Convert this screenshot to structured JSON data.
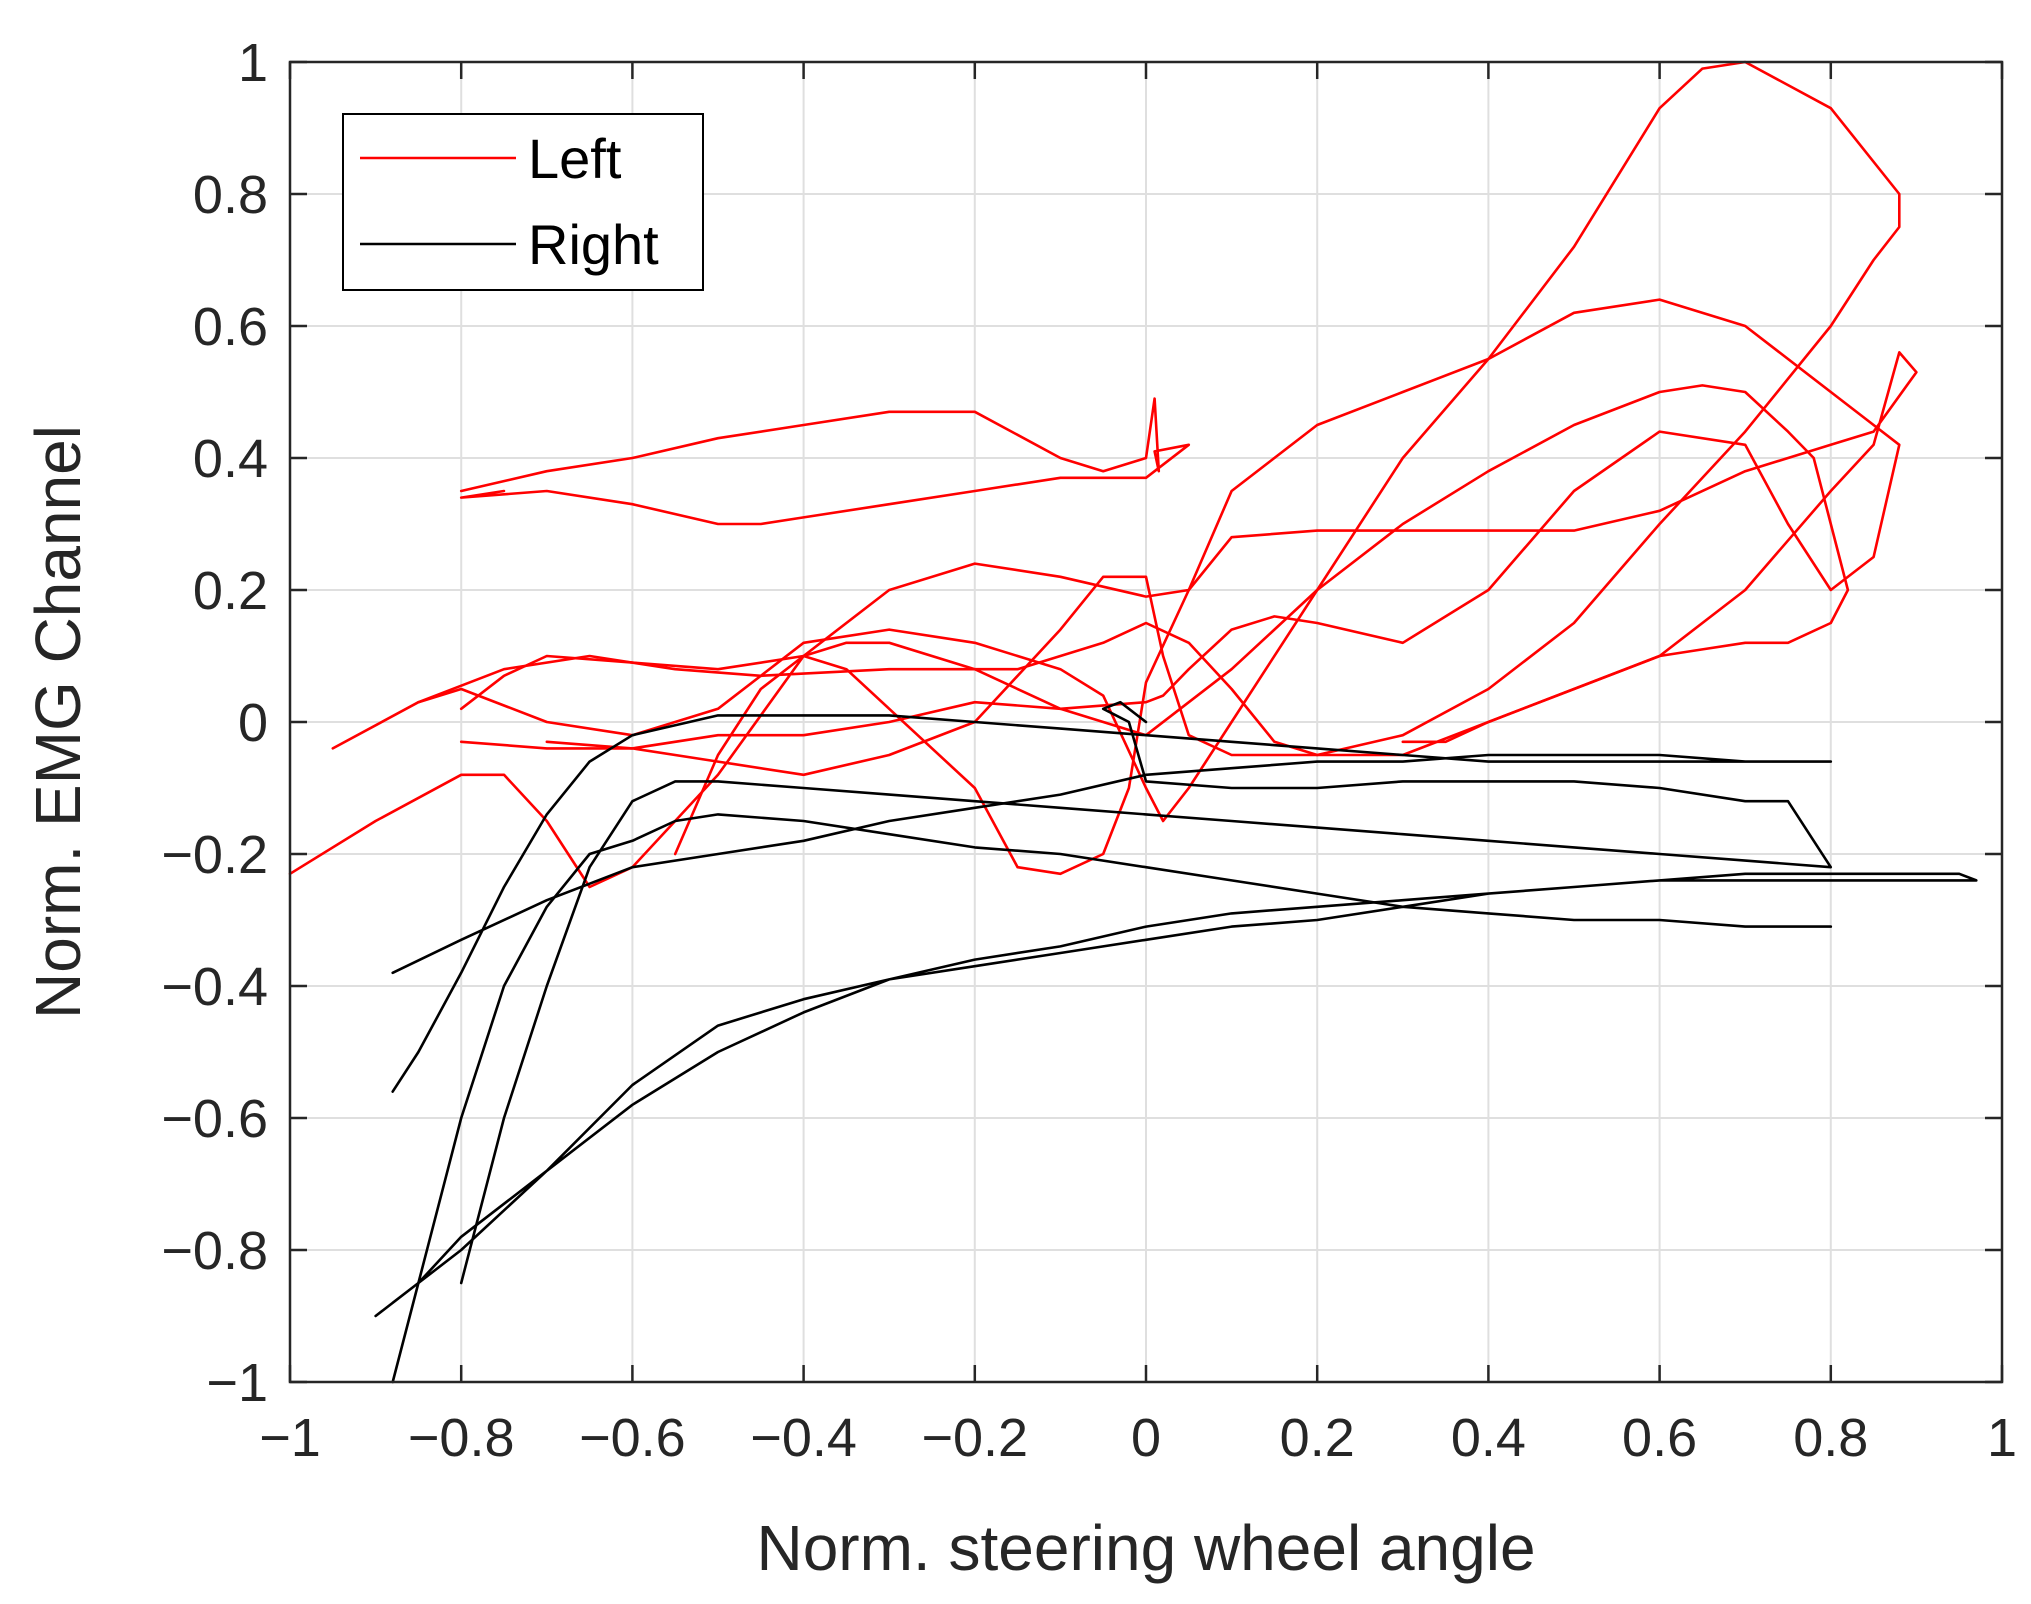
{
  "chart_data": {
    "type": "line",
    "title": "",
    "xlabel": "Norm. steering wheel angle",
    "ylabel": "Norm. EMG Channel",
    "xlim": [
      -1,
      1
    ],
    "ylim": [
      -1,
      1
    ],
    "grid": true,
    "legend_position": "top-left",
    "xticks": [
      -1,
      -0.8,
      -0.6,
      -0.4,
      -0.2,
      0,
      0.2,
      0.4,
      0.6,
      0.8,
      1
    ],
    "yticks": [
      -1,
      -0.8,
      -0.6,
      -0.4,
      -0.2,
      0,
      0.2,
      0.4,
      0.6,
      0.8,
      1
    ],
    "xtick_labels": [
      "−1",
      "−0.8",
      "−0.6",
      "−0.4",
      "−0.2",
      "0",
      "0.2",
      "0.4",
      "0.6",
      "0.8",
      "1"
    ],
    "ytick_labels": [
      "−1",
      "−0.8",
      "−0.6",
      "−0.4",
      "−0.2",
      "0",
      "0.2",
      "0.4",
      "0.6",
      "0.8",
      "1"
    ],
    "series": [
      {
        "name": "Left",
        "color": "#ff0000",
        "show_in_legend": true,
        "x": [
          -0.8,
          -0.7,
          -0.6,
          -0.5,
          -0.4,
          -0.3,
          -0.2,
          -0.1,
          -0.05,
          0.0,
          0.01,
          0.015,
          0.01,
          0.05,
          0.0,
          -0.1,
          -0.2,
          -0.3,
          -0.4,
          -0.45,
          -0.5,
          -0.6,
          -0.7,
          -0.8,
          -0.75
        ],
        "y": [
          0.35,
          0.38,
          0.4,
          0.43,
          0.45,
          0.47,
          0.47,
          0.4,
          0.38,
          0.4,
          0.49,
          0.38,
          0.41,
          0.42,
          0.37,
          0.37,
          0.35,
          0.33,
          0.31,
          0.3,
          0.3,
          0.33,
          0.35,
          0.34,
          0.35
        ]
      },
      {
        "name": "Left-2",
        "color": "#ff0000",
        "show_in_legend": false,
        "x": [
          -1.0,
          -0.9,
          -0.8,
          -0.75,
          -0.7,
          -0.65,
          -0.6,
          -0.5,
          -0.4,
          -0.3,
          -0.2,
          -0.1,
          0.0,
          0.05,
          0.1,
          0.2,
          0.3,
          0.4,
          0.5,
          0.6,
          0.7,
          0.8,
          0.85,
          0.9,
          0.88,
          0.85,
          0.8,
          0.7,
          0.6,
          0.5,
          0.4,
          0.3,
          0.2,
          0.15,
          0.1,
          0.05,
          0.0,
          -0.05,
          -0.15,
          -0.3,
          -0.45,
          -0.55,
          -0.65,
          -0.75,
          -0.85,
          -0.95
        ],
        "y": [
          -0.23,
          -0.15,
          -0.08,
          -0.08,
          -0.15,
          -0.25,
          -0.22,
          -0.08,
          0.1,
          0.2,
          0.24,
          0.22,
          0.19,
          0.2,
          0.28,
          0.29,
          0.29,
          0.29,
          0.29,
          0.32,
          0.38,
          0.42,
          0.44,
          0.53,
          0.56,
          0.42,
          0.35,
          0.2,
          0.1,
          0.05,
          0.0,
          -0.05,
          -0.05,
          -0.03,
          0.05,
          0.12,
          0.15,
          0.12,
          0.08,
          0.08,
          0.07,
          0.08,
          0.1,
          0.08,
          0.03,
          -0.04
        ]
      },
      {
        "name": "Left-3",
        "color": "#ff0000",
        "show_in_legend": false,
        "x": [
          -0.85,
          -0.8,
          -0.7,
          -0.6,
          -0.5,
          -0.4,
          -0.3,
          -0.2,
          -0.1,
          -0.05,
          0.0,
          0.02,
          0.05,
          0.1,
          0.2,
          0.3,
          0.4,
          0.5,
          0.6,
          0.65,
          0.7,
          0.8,
          0.88,
          0.88,
          0.85,
          0.8,
          0.7,
          0.6,
          0.5,
          0.4,
          0.3,
          0.2,
          0.1,
          0.05,
          0.02,
          0.0,
          -0.05,
          -0.1,
          -0.2,
          -0.3,
          -0.4,
          -0.5,
          -0.6,
          -0.7,
          -0.8
        ],
        "y": [
          0.03,
          0.05,
          0.0,
          -0.02,
          0.02,
          0.12,
          0.14,
          0.12,
          0.08,
          0.04,
          -0.1,
          -0.15,
          -0.1,
          0.0,
          0.2,
          0.4,
          0.55,
          0.72,
          0.93,
          0.99,
          1.0,
          0.93,
          0.8,
          0.75,
          0.7,
          0.6,
          0.44,
          0.3,
          0.15,
          0.05,
          -0.02,
          -0.05,
          -0.05,
          -0.02,
          0.1,
          0.22,
          0.22,
          0.14,
          0.0,
          -0.05,
          -0.08,
          -0.06,
          -0.04,
          -0.04,
          -0.03
        ]
      },
      {
        "name": "Left-4",
        "color": "#ff0000",
        "show_in_legend": false,
        "x": [
          -0.8,
          -0.75,
          -0.7,
          -0.6,
          -0.5,
          -0.4,
          -0.35,
          -0.3,
          -0.2,
          -0.15,
          -0.1,
          -0.05,
          -0.02,
          0.0,
          0.05,
          0.1,
          0.2,
          0.3,
          0.4,
          0.5,
          0.6,
          0.7,
          0.8,
          0.85,
          0.88,
          0.85,
          0.8,
          0.75,
          0.7,
          0.6,
          0.5,
          0.4,
          0.3,
          0.2,
          0.15,
          0.1,
          0.05,
          0.02,
          0.0,
          -0.1,
          -0.2,
          -0.3,
          -0.4,
          -0.5,
          -0.6,
          -0.7
        ],
        "y": [
          0.02,
          0.07,
          0.1,
          0.09,
          0.08,
          0.1,
          0.08,
          0.02,
          -0.1,
          -0.22,
          -0.23,
          -0.2,
          -0.1,
          0.06,
          0.2,
          0.35,
          0.45,
          0.5,
          0.55,
          0.62,
          0.64,
          0.6,
          0.5,
          0.45,
          0.42,
          0.25,
          0.2,
          0.3,
          0.42,
          0.44,
          0.35,
          0.2,
          0.12,
          0.15,
          0.16,
          0.14,
          0.08,
          0.04,
          0.03,
          0.02,
          0.03,
          0.0,
          -0.02,
          -0.02,
          -0.04,
          -0.03
        ]
      },
      {
        "name": "Left-5",
        "color": "#ff0000",
        "show_in_legend": false,
        "x": [
          -0.55,
          -0.5,
          -0.45,
          -0.4,
          -0.35,
          -0.3,
          -0.2,
          -0.1,
          0.0,
          0.1,
          0.2,
          0.3,
          0.4,
          0.5,
          0.6,
          0.65,
          0.7,
          0.75,
          0.78,
          0.8,
          0.82,
          0.8,
          0.75,
          0.7,
          0.65,
          0.6,
          0.5,
          0.4,
          0.35,
          0.3
        ],
        "y": [
          -0.2,
          -0.05,
          0.05,
          0.1,
          0.12,
          0.12,
          0.08,
          0.02,
          -0.02,
          0.08,
          0.2,
          0.3,
          0.38,
          0.45,
          0.5,
          0.51,
          0.5,
          0.44,
          0.4,
          0.3,
          0.2,
          0.15,
          0.12,
          0.12,
          0.11,
          0.1,
          0.05,
          0.0,
          -0.03,
          -0.03
        ]
      },
      {
        "name": "Right",
        "color": "#000000",
        "show_in_legend": true,
        "x": [
          -0.88,
          -0.85,
          -0.8,
          -0.75,
          -0.7,
          -0.65,
          -0.6,
          -0.55,
          -0.5,
          -0.4,
          -0.3,
          -0.2,
          -0.1,
          0.0,
          0.1,
          0.2,
          0.3,
          0.4,
          0.5,
          0.6,
          0.7,
          0.8
        ],
        "y": [
          -1.0,
          -0.85,
          -0.6,
          -0.4,
          -0.28,
          -0.2,
          -0.18,
          -0.15,
          -0.14,
          -0.15,
          -0.17,
          -0.19,
          -0.2,
          -0.22,
          -0.24,
          -0.26,
          -0.28,
          -0.29,
          -0.3,
          -0.3,
          -0.31,
          -0.31
        ]
      },
      {
        "name": "Right-2",
        "color": "#000000",
        "show_in_legend": false,
        "x": [
          -0.9,
          -0.85,
          -0.8,
          -0.7,
          -0.6,
          -0.5,
          -0.4,
          -0.3,
          -0.2,
          -0.1,
          0.0,
          0.1,
          0.2,
          0.3,
          0.4,
          0.5,
          0.6,
          0.7,
          0.8,
          0.9,
          0.97,
          0.95,
          0.9,
          0.8,
          0.7,
          0.6,
          0.5,
          0.4,
          0.3,
          0.2,
          0.1,
          0.0,
          -0.1,
          -0.2,
          -0.3,
          -0.4,
          -0.5,
          -0.6,
          -0.7,
          -0.8,
          -0.85,
          -0.88
        ],
        "y": [
          -0.9,
          -0.85,
          -0.78,
          -0.68,
          -0.58,
          -0.5,
          -0.44,
          -0.39,
          -0.36,
          -0.34,
          -0.31,
          -0.29,
          -0.28,
          -0.27,
          -0.26,
          -0.25,
          -0.24,
          -0.24,
          -0.24,
          -0.24,
          -0.24,
          -0.23,
          -0.23,
          -0.23,
          -0.23,
          -0.24,
          -0.25,
          -0.26,
          -0.28,
          -0.3,
          -0.31,
          -0.33,
          -0.35,
          -0.37,
          -0.39,
          -0.42,
          -0.46,
          -0.55,
          -0.68,
          -0.8,
          -0.85,
          -0.88
        ]
      },
      {
        "name": "Right-3",
        "color": "#000000",
        "show_in_legend": false,
        "x": [
          -0.88,
          -0.8,
          -0.7,
          -0.6,
          -0.5,
          -0.4,
          -0.3,
          -0.2,
          -0.1,
          0.0,
          0.1,
          0.2,
          0.3,
          0.4,
          0.5,
          0.6,
          0.7,
          0.8,
          0.75,
          0.7,
          0.6,
          0.5,
          0.4,
          0.3,
          0.2,
          0.1,
          0.0,
          -0.1,
          -0.2,
          -0.3,
          -0.4,
          -0.5,
          -0.6,
          -0.65,
          -0.7,
          -0.75,
          -0.8,
          -0.85,
          -0.88
        ],
        "y": [
          -0.38,
          -0.33,
          -0.27,
          -0.22,
          -0.2,
          -0.18,
          -0.15,
          -0.13,
          -0.11,
          -0.08,
          -0.07,
          -0.06,
          -0.06,
          -0.05,
          -0.05,
          -0.05,
          -0.06,
          -0.06,
          -0.06,
          -0.06,
          -0.06,
          -0.06,
          -0.06,
          -0.05,
          -0.04,
          -0.03,
          -0.02,
          -0.01,
          0.0,
          0.01,
          0.01,
          0.01,
          -0.02,
          -0.06,
          -0.14,
          -0.25,
          -0.38,
          -0.5,
          -0.56
        ]
      },
      {
        "name": "Right-4",
        "color": "#000000",
        "show_in_legend": false,
        "x": [
          -0.8,
          -0.75,
          -0.7,
          -0.65,
          -0.6,
          -0.55,
          -0.5,
          -0.4,
          -0.3,
          -0.2,
          -0.1,
          0.0,
          0.1,
          0.2,
          0.3,
          0.4,
          0.5,
          0.6,
          0.7,
          0.8,
          0.75,
          0.7,
          0.6,
          0.5,
          0.4,
          0.3,
          0.2,
          0.1,
          0.0,
          -0.02,
          -0.05,
          -0.03,
          -0.01,
          0.0
        ],
        "y": [
          -0.85,
          -0.6,
          -0.4,
          -0.22,
          -0.12,
          -0.09,
          -0.09,
          -0.1,
          -0.11,
          -0.12,
          -0.13,
          -0.14,
          -0.15,
          -0.16,
          -0.17,
          -0.18,
          -0.19,
          -0.2,
          -0.21,
          -0.22,
          -0.12,
          -0.12,
          -0.1,
          -0.09,
          -0.09,
          -0.09,
          -0.1,
          -0.1,
          -0.09,
          0.0,
          0.02,
          0.03,
          0.01,
          0.0
        ]
      }
    ]
  }
}
